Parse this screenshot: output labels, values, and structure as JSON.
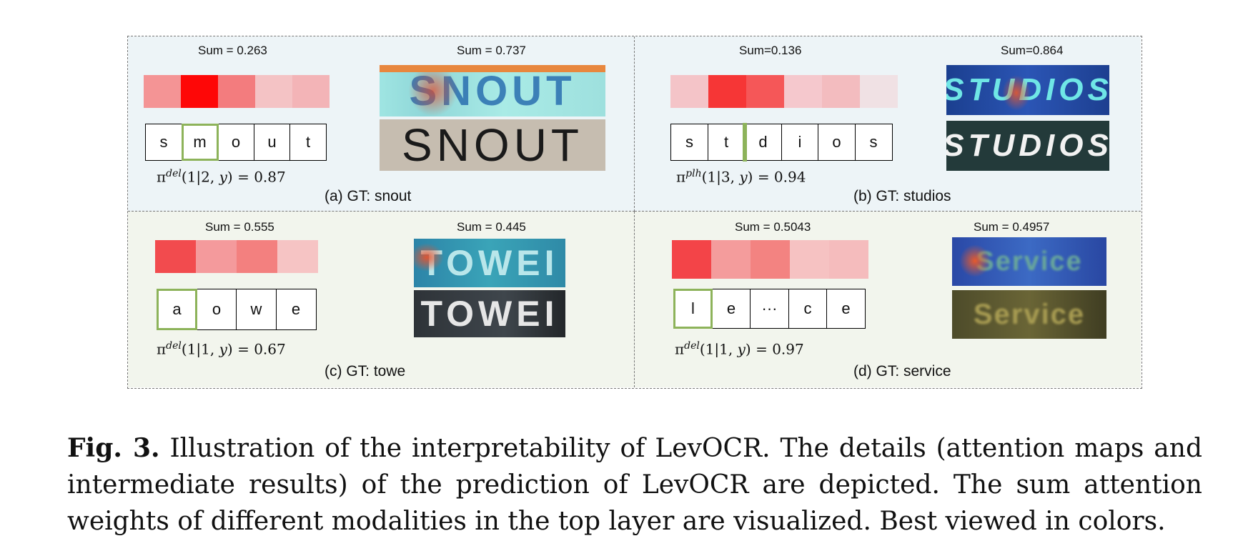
{
  "panels": {
    "a": {
      "sum_left": "Sum = 0.263",
      "sum_right": "Sum = 0.737",
      "heat_colors": [
        "#f49495",
        "#fe0707",
        "#f37c7e",
        "#f4c3c5",
        "#f3b4b7"
      ],
      "tokens": [
        "s",
        "m",
        "o",
        "u",
        "t"
      ],
      "highlight_index": 1,
      "formula_sup": "del",
      "formula_rest": "(1|2, ",
      "formula_var": "y",
      "formula_value": ") = 0.87",
      "image_text_top": "SNOUT",
      "image_text_bottom": "SNOUT",
      "gt": "(a) GT: snout"
    },
    "b": {
      "sum_left": "Sum=0.136",
      "sum_right": "Sum=0.864",
      "heat_colors": [
        "#f4c4c8",
        "#f63636",
        "#f55758",
        "#f5c8cd",
        "#f3bcbf",
        "#f0e1e4"
      ],
      "tokens": [
        "s",
        "t",
        "d",
        "i",
        "o",
        "s"
      ],
      "formula_sup": "plh",
      "formula_rest": "(1|3, ",
      "formula_var": "y",
      "formula_value": ") = 0.94",
      "image_text_top": "STUDIOS",
      "image_text_bottom": "STUDIOS",
      "gt": "(b) GT: studios"
    },
    "c": {
      "sum_left": "Sum = 0.555",
      "sum_right": "Sum = 0.445",
      "heat_colors": [
        "#f24b4e",
        "#f49a9c",
        "#f3807f",
        "#f6c4c4"
      ],
      "tokens": [
        "a",
        "o",
        "w",
        "e"
      ],
      "highlight_index": 0,
      "formula_sup": "del",
      "formula_rest": "(1|1, ",
      "formula_var": "y",
      "formula_value": ") = 0.67",
      "image_text_top": "TOWEI",
      "image_text_bottom": "TOWEI",
      "gt": "(c) GT: towe"
    },
    "d": {
      "sum_left": "Sum = 0.5043",
      "sum_right": "Sum = 0.4957",
      "heat_colors": [
        "#f34448",
        "#f49c9c",
        "#f38381",
        "#f6c2c2",
        "#f5bcbd"
      ],
      "tokens": [
        "l",
        "e",
        "···",
        "c",
        "e"
      ],
      "highlight_index": 0,
      "formula_sup": "del",
      "formula_rest": "(1|1, ",
      "formula_var": "y",
      "formula_value": ") = 0.97",
      "image_text_top": "Service",
      "image_text_bottom": "Service",
      "gt": "(d) GT: service"
    }
  },
  "caption": {
    "label": "Fig. 3.",
    "text": " Illustration of the interpretability of LevOCR. The details (attention maps and intermediate results) of the prediction of LevOCR are depicted. The sum attention weights of different modalities in the top layer are visualized. Best viewed in colors."
  },
  "colors": {
    "highlight_border": "#8db35a",
    "panel_top_bg": "#edf4f7",
    "panel_bottom_bg": "#f2f5ed"
  }
}
